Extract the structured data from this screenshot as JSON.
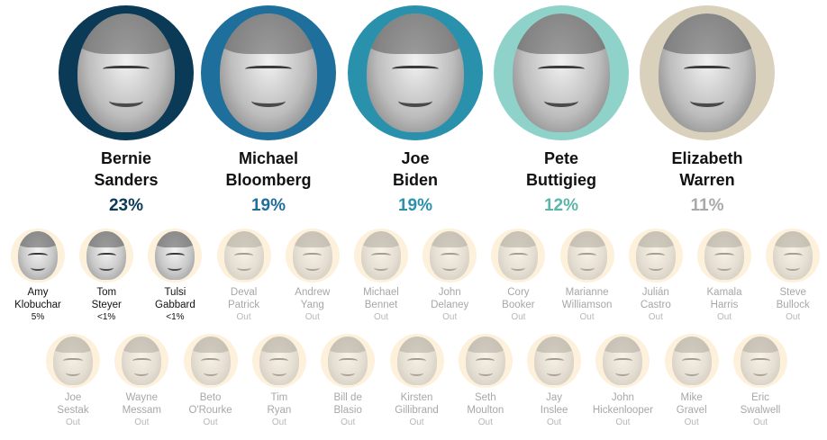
{
  "leaders": [
    {
      "first": "Bernie",
      "last": "Sanders",
      "pct": "23%",
      "color": "#0b3a57",
      "pct_color": "#0b3a57"
    },
    {
      "first": "Michael",
      "last": "Bloomberg",
      "pct": "19%",
      "color": "#1f6f9d",
      "pct_color": "#1f6f9d"
    },
    {
      "first": "Joe",
      "last": "Biden",
      "pct": "19%",
      "color": "#2a91ad",
      "pct_color": "#2a91ad"
    },
    {
      "first": "Pete",
      "last": "Buttigieg",
      "pct": "12%",
      "color": "#8ed2c9",
      "pct_color": "#5bb5a9"
    },
    {
      "first": "Elizabeth",
      "last": "Warren",
      "pct": "11%",
      "color": "#d9d1bc",
      "pct_color": "#a9a9a9"
    }
  ],
  "row1": [
    {
      "first": "Amy",
      "last": "Klobuchar",
      "status": "5%",
      "out": false
    },
    {
      "first": "Tom",
      "last": "Steyer",
      "status": "<1%",
      "out": false
    },
    {
      "first": "Tulsi",
      "last": "Gabbard",
      "status": "<1%",
      "out": false
    },
    {
      "first": "Deval",
      "last": "Patrick",
      "status": "Out",
      "out": true
    },
    {
      "first": "Andrew",
      "last": "Yang",
      "status": "Out",
      "out": true
    },
    {
      "first": "Michael",
      "last": "Bennet",
      "status": "Out",
      "out": true
    },
    {
      "first": "John",
      "last": "Delaney",
      "status": "Out",
      "out": true
    },
    {
      "first": "Cory",
      "last": "Booker",
      "status": "Out",
      "out": true
    },
    {
      "first": "Marianne",
      "last": "Williamson",
      "status": "Out",
      "out": true
    },
    {
      "first": "Julián",
      "last": "Castro",
      "status": "Out",
      "out": true
    },
    {
      "first": "Kamala",
      "last": "Harris",
      "status": "Out",
      "out": true
    },
    {
      "first": "Steve",
      "last": "Bullock",
      "status": "Out",
      "out": true
    }
  ],
  "row2": [
    {
      "first": "Joe",
      "last": "Sestak",
      "status": "Out",
      "out": true
    },
    {
      "first": "Wayne",
      "last": "Messam",
      "status": "Out",
      "out": true
    },
    {
      "first": "Beto",
      "last": "O'Rourke",
      "status": "Out",
      "out": true
    },
    {
      "first": "Tim",
      "last": "Ryan",
      "status": "Out",
      "out": true
    },
    {
      "first": "Bill de",
      "last": "Blasio",
      "status": "Out",
      "out": true
    },
    {
      "first": "Kirsten",
      "last": "Gillibrand",
      "status": "Out",
      "out": true
    },
    {
      "first": "Seth",
      "last": "Moulton",
      "status": "Out",
      "out": true
    },
    {
      "first": "Jay",
      "last": "Inslee",
      "status": "Out",
      "out": true
    },
    {
      "first": "John",
      "last": "Hickenlooper",
      "status": "Out",
      "out": true
    },
    {
      "first": "Mike",
      "last": "Gravel",
      "status": "Out",
      "out": true
    },
    {
      "first": "Eric",
      "last": "Swalwell",
      "status": "Out",
      "out": true
    }
  ]
}
